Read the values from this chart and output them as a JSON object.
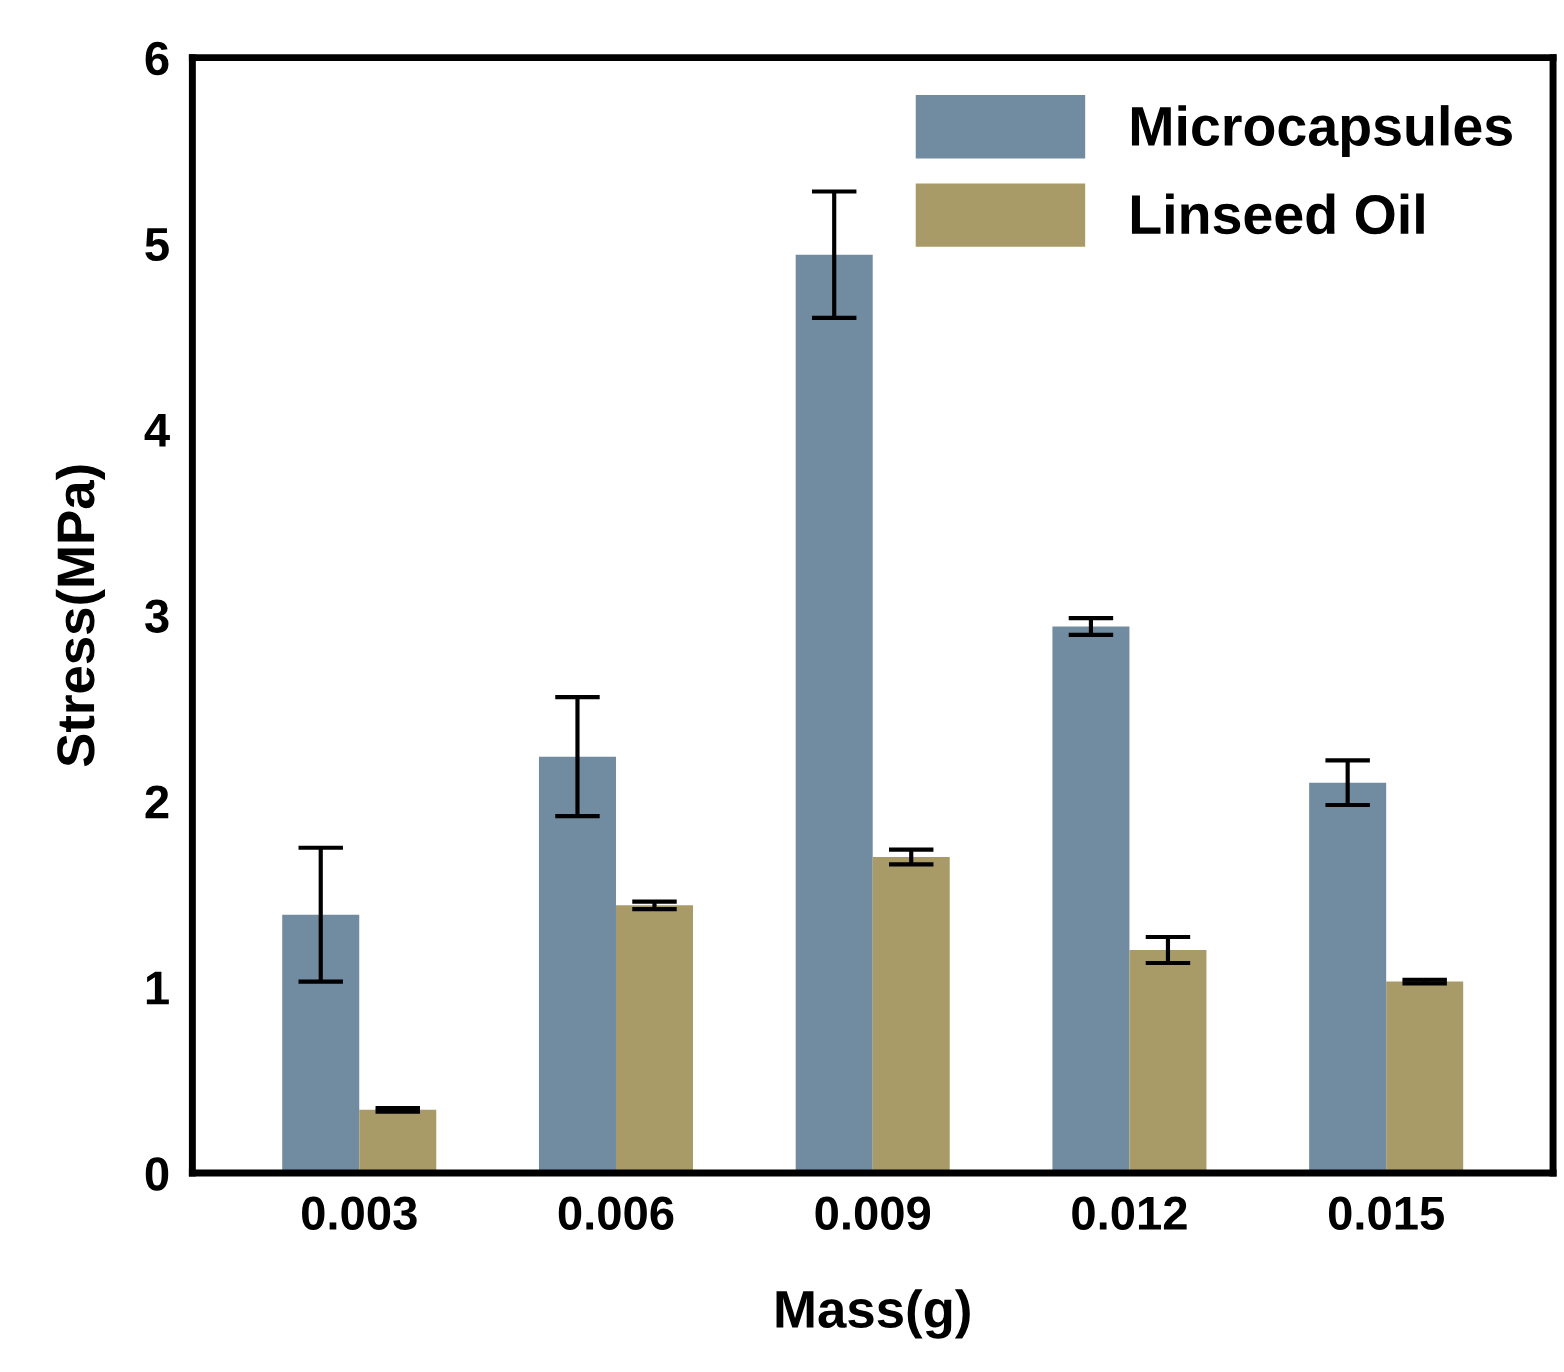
{
  "chart_data": {
    "type": "bar",
    "xlabel": "Mass(g)",
    "ylabel": "Stress(MPa)",
    "categories": [
      "0.003",
      "0.006",
      "0.009",
      "0.012",
      "0.015"
    ],
    "series": [
      {
        "name": "Microcapsules",
        "color": "#718ba0",
        "values": [
          1.39,
          2.24,
          4.94,
          2.94,
          2.1
        ],
        "errors": [
          0.36,
          0.32,
          0.34,
          0.045,
          0.12
        ]
      },
      {
        "name": "Linseed Oil",
        "color": "#a89b67",
        "values": [
          0.34,
          1.44,
          1.7,
          1.2,
          1.03
        ],
        "errors": [
          0.01,
          0.02,
          0.04,
          0.07,
          0.01
        ]
      }
    ],
    "ylim": [
      0,
      6
    ],
    "yticks": [
      0,
      1,
      2,
      3,
      4,
      5,
      6
    ],
    "grid": false,
    "legend": "top right"
  }
}
